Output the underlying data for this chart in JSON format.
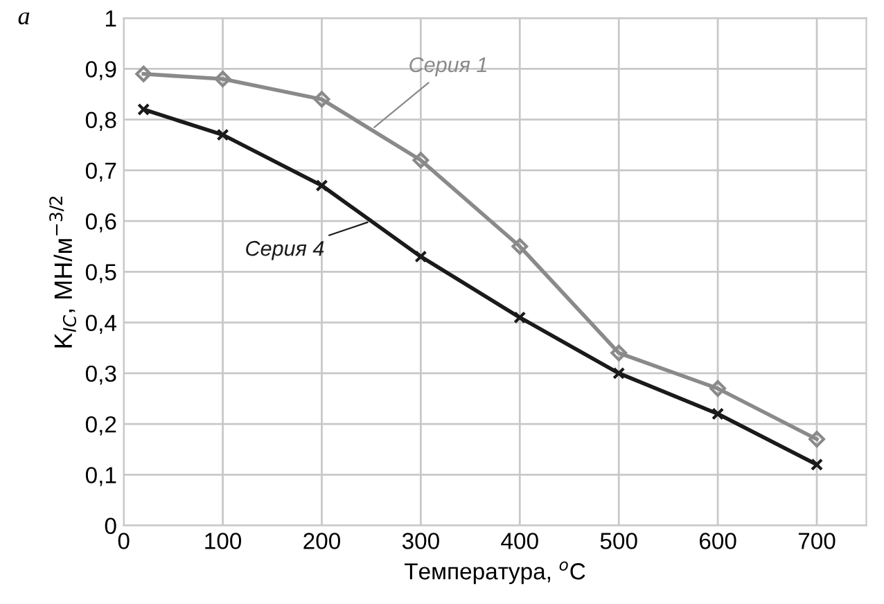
{
  "chart_data": {
    "type": "line",
    "xlabel": "Температура, $^{o}$C",
    "ylabel": "K$_{IC}$, МН/м$^{−3/2}$",
    "annotations": [
      "а"
    ],
    "xlim": [
      0,
      750
    ],
    "xticks": [
      0,
      100,
      200,
      300,
      400,
      500,
      600,
      700
    ],
    "ylim": [
      0,
      1
    ],
    "yticks": [
      {
        "value": 0,
        "label": "0"
      },
      {
        "value": 0.1,
        "label": "0,1"
      },
      {
        "value": 0.2,
        "label": "0,2"
      },
      {
        "value": 0.3,
        "label": "0,3"
      },
      {
        "value": 0.4,
        "label": "0,4"
      },
      {
        "value": 0.5,
        "label": "0,5"
      },
      {
        "value": 0.6,
        "label": "0,6"
      },
      {
        "value": 0.7,
        "label": "0,7"
      },
      {
        "value": 0.8,
        "label": "0,8"
      },
      {
        "value": 0.9,
        "label": "0,9"
      },
      {
        "value": 1,
        "label": "1"
      }
    ],
    "grid": true,
    "legend": false,
    "line_style": "solid",
    "x": [
      20,
      100,
      200,
      300,
      400,
      500,
      600,
      700
    ],
    "series": [
      {
        "name": "Серия 1",
        "color": "#8a8a8a",
        "marker": "diamond",
        "values": [
          0.89,
          0.88,
          0.84,
          0.72,
          0.55,
          0.34,
          0.27,
          0.17
        ]
      },
      {
        "name": "Серия 4",
        "color": "#1a1a1a",
        "marker": "cross",
        "values": [
          0.82,
          0.77,
          0.67,
          0.53,
          0.41,
          0.3,
          0.22,
          0.12
        ]
      }
    ]
  }
}
